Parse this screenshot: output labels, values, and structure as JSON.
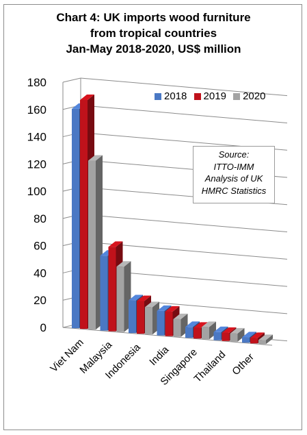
{
  "chart_data": {
    "type": "bar",
    "title_lines": [
      "Chart 4: UK imports wood furniture",
      "from tropical countries",
      "Jan-May 2018-2020, US$ million"
    ],
    "categories": [
      "Viet Nam",
      "Malaysia",
      "Indonesia",
      "India",
      "Singapore",
      "Thailand",
      "Other"
    ],
    "series": [
      {
        "name": "2018",
        "values": [
          161,
          55,
          24,
          18,
          8,
          6,
          4
        ]
      },
      {
        "name": "2019",
        "values": [
          168,
          62,
          24,
          18,
          8,
          6,
          4
        ]
      },
      {
        "name": "2020",
        "values": [
          124,
          48,
          20,
          13,
          9,
          6,
          3
        ]
      }
    ],
    "colors": {
      "2018": "#4a78c4",
      "2019": "#c0121b",
      "2020": "#a3a3a3"
    },
    "ylim": [
      0,
      180
    ],
    "yticks": [
      "0",
      "20",
      "40",
      "60",
      "80",
      "100",
      "120",
      "140",
      "160",
      "180"
    ],
    "grid": true,
    "legend_position": "top-right",
    "annotation_lines": [
      "Source:",
      "ITTO-IMM",
      "Analysis of UK",
      "HMRC Statistics"
    ]
  }
}
